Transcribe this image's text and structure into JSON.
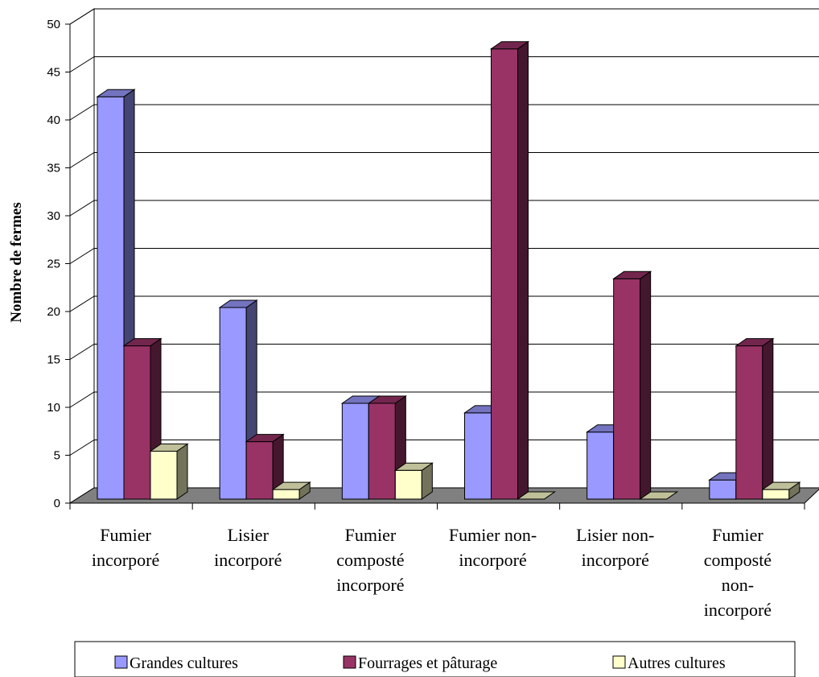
{
  "chart_data": {
    "type": "bar",
    "title": "",
    "xlabel": "",
    "ylabel": "Nombre de fermes",
    "ylim": [
      0,
      50
    ],
    "yticks": [
      0,
      5,
      10,
      15,
      20,
      25,
      30,
      35,
      40,
      45,
      50
    ],
    "grid": true,
    "legend_position": "bottom",
    "categories": [
      [
        "Fumier",
        "incorporé"
      ],
      [
        "Lisier",
        "incorporé"
      ],
      [
        "Fumier",
        "composté",
        "incorporé"
      ],
      [
        "Fumier non-",
        "incorporé"
      ],
      [
        "Lisier non-",
        "incorporé"
      ],
      [
        "Fumier",
        "composté",
        "non-",
        "incorporé"
      ]
    ],
    "series": [
      {
        "name": "Grandes cultures",
        "color": "#9999ff",
        "values": [
          42,
          20,
          10,
          9,
          7,
          2
        ]
      },
      {
        "name": "Fourrages et pâturage",
        "color": "#993366",
        "values": [
          16,
          6,
          10,
          47,
          23,
          16
        ]
      },
      {
        "name": "Autres cultures",
        "color": "#ffffcc",
        "values": [
          5,
          1,
          3,
          0,
          0,
          1
        ]
      }
    ]
  }
}
